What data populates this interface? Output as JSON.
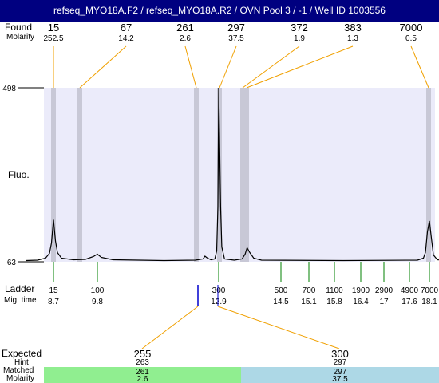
{
  "title": "refseq_MYO18A.F2 / refseq_MYO18A.R2 / OVN Pool 3 / -1 / Well ID 1003556",
  "labels": {
    "found": "Found",
    "molarity": "Molarity",
    "fluo": "Fluo.",
    "ladder": "Ladder",
    "mig_time": "Mig. time",
    "expected": "Expected",
    "hint": "Hint",
    "matched": "Matched",
    "molarity_bottom": "Molarity"
  },
  "chart_data": {
    "type": "line",
    "y_ticks": [
      63,
      498
    ],
    "ylim": [
      63,
      498
    ],
    "grid": false,
    "colors": {
      "plot_background": "#ebebfa",
      "peak_band": "#c8c8d6",
      "trace": "#000000",
      "found_connector": "#f0a000",
      "ladder_tick": "#008000",
      "marker_tick": "#0000cc",
      "matched_green": "#90ee90",
      "matched_blue": "#add8e6"
    },
    "found_peaks": [
      {
        "size": "15",
        "molarity": "252.5"
      },
      {
        "size": "67",
        "molarity": "14.2"
      },
      {
        "size": "261",
        "molarity": "2.6"
      },
      {
        "size": "297",
        "molarity": "37.5"
      },
      {
        "size": "372",
        "molarity": "1.9"
      },
      {
        "size": "383",
        "molarity": "1.3"
      },
      {
        "size": "7000",
        "molarity": "0.5"
      }
    ],
    "ladder": [
      {
        "size": "15",
        "mig_time": "8.7"
      },
      {
        "size": "100",
        "mig_time": "9.8"
      },
      {
        "size": "300",
        "mig_time": "12.9"
      },
      {
        "size": "500",
        "mig_time": "14.5"
      },
      {
        "size": "700",
        "mig_time": "15.1"
      },
      {
        "size": "1100",
        "mig_time": "15.8"
      },
      {
        "size": "1900",
        "mig_time": "16.4"
      },
      {
        "size": "2900",
        "mig_time": "17"
      },
      {
        "size": "4900",
        "mig_time": "17.6"
      },
      {
        "size": "7000",
        "mig_time": "18.1"
      }
    ],
    "expected": [
      {
        "expected": "255",
        "hint": "263",
        "matched": "261",
        "molarity": "2.6"
      },
      {
        "expected": "300",
        "hint": "297",
        "matched": "297",
        "molarity": "37.5"
      }
    ],
    "trace": [
      [
        8.0,
        66
      ],
      [
        8.3,
        67
      ],
      [
        8.5,
        72
      ],
      [
        8.6,
        84
      ],
      [
        8.65,
        110
      ],
      [
        8.7,
        168
      ],
      [
        8.75,
        115
      ],
      [
        8.8,
        86
      ],
      [
        8.9,
        72
      ],
      [
        9.2,
        68
      ],
      [
        9.5,
        69
      ],
      [
        9.7,
        76
      ],
      [
        9.8,
        82
      ],
      [
        9.9,
        74
      ],
      [
        10.2,
        68
      ],
      [
        11.5,
        66
      ],
      [
        12.3,
        67
      ],
      [
        12.5,
        70
      ],
      [
        12.55,
        77
      ],
      [
        12.6,
        73
      ],
      [
        12.7,
        68
      ],
      [
        12.8,
        70
      ],
      [
        12.85,
        90
      ],
      [
        12.88,
        200
      ],
      [
        12.9,
        498
      ],
      [
        12.92,
        380
      ],
      [
        12.95,
        200
      ],
      [
        12.98,
        100
      ],
      [
        13.05,
        70
      ],
      [
        13.3,
        67
      ],
      [
        13.5,
        70
      ],
      [
        13.58,
        82
      ],
      [
        13.63,
        98
      ],
      [
        13.7,
        86
      ],
      [
        13.8,
        72
      ],
      [
        14.0,
        67
      ],
      [
        16.0,
        66
      ],
      [
        17.8,
        67
      ],
      [
        17.95,
        72
      ],
      [
        18.0,
        86
      ],
      [
        18.05,
        138
      ],
      [
        18.1,
        165
      ],
      [
        18.15,
        122
      ],
      [
        18.2,
        80
      ],
      [
        18.3,
        68
      ],
      [
        18.5,
        66
      ]
    ]
  }
}
